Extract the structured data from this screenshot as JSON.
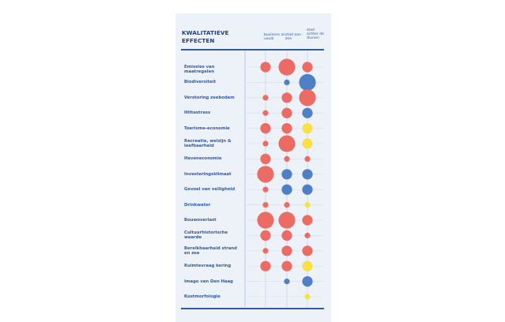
{
  "title": "KWALITATIEVE EFFECTEN",
  "columns": [
    "business as usual",
    "stad aan zee",
    "stad achter de duinen"
  ],
  "colors": {
    "high": "#ec6b65",
    "medium": "#e06060",
    "blue": "#4f7fc4",
    "yellow": "#f7e048",
    "panel": "#edf2f9",
    "text": "#2f5aa8"
  },
  "chart_data": {
    "type": "bubble-matrix",
    "title": "KWALITATIEVE EFFECTEN",
    "columns": [
      "business as usual",
      "stad aan zee",
      "stad achter de duinen"
    ],
    "rows": [
      {
        "label": "Emissies van maatregelen",
        "cells": [
          {
            "color": "red",
            "size": 2
          },
          {
            "color": "red",
            "size": 3
          },
          {
            "color": "red",
            "size": 2
          }
        ]
      },
      {
        "label": "Biodiversiteit",
        "cells": [
          null,
          {
            "color": "blue",
            "size": 1
          },
          {
            "color": "blue",
            "size": 3
          }
        ]
      },
      {
        "label": "Verstoring zeebodem",
        "cells": [
          {
            "color": "red",
            "size": 1
          },
          {
            "color": "red",
            "size": 2
          },
          {
            "color": "red",
            "size": 3
          }
        ]
      },
      {
        "label": "Hittestress",
        "cells": [
          {
            "color": "red",
            "size": 1
          },
          {
            "color": "red",
            "size": 2
          },
          {
            "color": "blue",
            "size": 2
          }
        ]
      },
      {
        "label": "Toerisme-economie",
        "cells": [
          {
            "color": "red",
            "size": 2
          },
          {
            "color": "red",
            "size": 2
          },
          {
            "color": "yellow",
            "size": 2
          }
        ]
      },
      {
        "label": "Recreatie, welzijn & leefbaarheid",
        "cells": [
          {
            "color": "red",
            "size": 1
          },
          {
            "color": "red",
            "size": 3
          },
          {
            "color": "yellow",
            "size": 2
          }
        ]
      },
      {
        "label": "Haveneconomie",
        "cells": [
          {
            "color": "red",
            "size": 2
          },
          {
            "color": "red",
            "size": 1
          },
          {
            "color": "red",
            "size": 1
          }
        ]
      },
      {
        "label": "Investeringsklimaat",
        "cells": [
          {
            "color": "red",
            "size": 3
          },
          {
            "color": "blue",
            "size": 2
          },
          {
            "color": "blue",
            "size": 2
          }
        ]
      },
      {
        "label": "Gevoel van veiligheid",
        "cells": [
          {
            "color": "red",
            "size": 1
          },
          {
            "color": "blue",
            "size": 2
          },
          {
            "color": "blue",
            "size": 2
          }
        ]
      },
      {
        "label": "Drinkwater",
        "cells": [
          {
            "color": "red",
            "size": 1
          },
          {
            "color": "red",
            "size": 1
          },
          {
            "color": "yellow",
            "size": 1
          }
        ]
      },
      {
        "label": "Bouwoverlast",
        "cells": [
          {
            "color": "red",
            "size": 3
          },
          {
            "color": "red",
            "size": 3
          },
          {
            "color": "red",
            "size": 2
          }
        ]
      },
      {
        "label": "Cultuurhistorische waarde",
        "cells": [
          {
            "color": "red",
            "size": 2
          },
          {
            "color": "red",
            "size": 2
          },
          {
            "color": "red",
            "size": 1
          }
        ]
      },
      {
        "label": "Bereikbaarheid strand en zee",
        "cells": [
          {
            "color": "red",
            "size": 1
          },
          {
            "color": "red",
            "size": 2
          },
          {
            "color": "red",
            "size": 2
          }
        ]
      },
      {
        "label": "Ruimtevraag kering",
        "cells": [
          {
            "color": "red",
            "size": 2
          },
          {
            "color": "red",
            "size": 2
          },
          {
            "color": "yellow",
            "size": 2
          }
        ]
      },
      {
        "label": "Imago van Den Haag",
        "cells": [
          null,
          {
            "color": "blue",
            "size": 1
          },
          {
            "color": "blue",
            "size": 2
          }
        ]
      },
      {
        "label": "Kustmorfologie",
        "cells": [
          null,
          null,
          {
            "color": "yellow",
            "size": 1
          }
        ]
      }
    ]
  }
}
